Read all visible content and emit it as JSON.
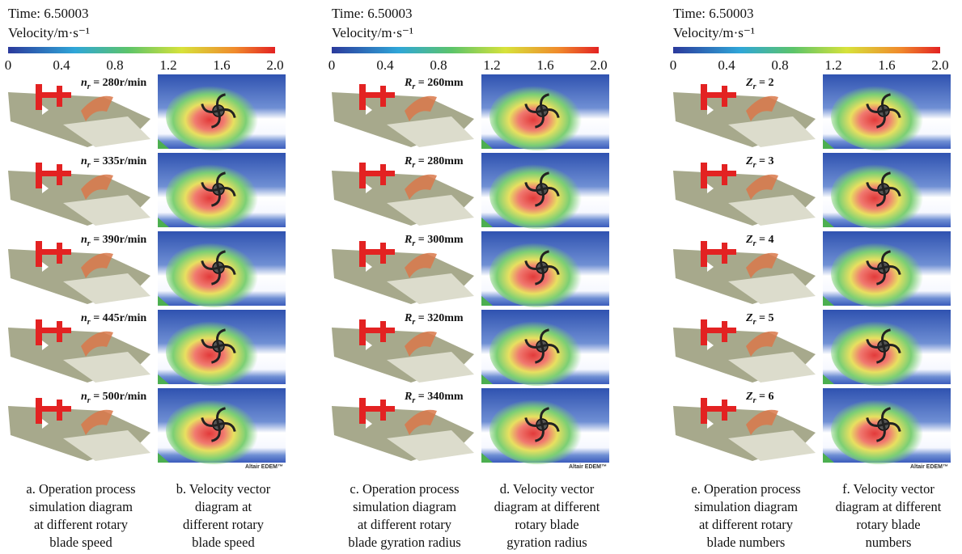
{
  "panels": [
    {
      "time": "Time: 6.50003",
      "colorbar": {
        "label": "Velocity/m·s⁻¹",
        "ticks": [
          0,
          0.4,
          0.8,
          1.2,
          1.6,
          {
            "value": 2,
            "label": "2.0"
          }
        ]
      },
      "labels": [
        {
          "symbol": "n",
          "sub": "r",
          "text": " = 280r/min"
        },
        {
          "symbol": "n",
          "sub": "r",
          "text": " = 335r/min"
        },
        {
          "symbol": "n",
          "sub": "r",
          "text": " = 390r/min"
        },
        {
          "symbol": "n",
          "sub": "r",
          "text": " = 445r/min"
        },
        {
          "symbol": "n",
          "sub": "r",
          "text": " = 500r/min"
        }
      ],
      "watermark": "Altair EDEM™",
      "captions": [
        [
          "a. Operation process",
          "simulation diagram",
          "at different rotary",
          "blade speed"
        ],
        [
          "b. Velocity vector",
          "diagram at",
          "different rotary",
          "blade speed"
        ]
      ]
    },
    {
      "time": "Time: 6.50003",
      "colorbar": {
        "label": "Velocity/m·s⁻¹",
        "ticks": [
          0,
          0.4,
          0.8,
          1.2,
          1.6,
          {
            "value": 2,
            "label": "2.0"
          }
        ]
      },
      "labels": [
        {
          "symbol": "R",
          "sub": "r",
          "text": " = 260mm"
        },
        {
          "symbol": "R",
          "sub": "r",
          "text": " = 280mm"
        },
        {
          "symbol": "R",
          "sub": "r",
          "text": " = 300mm"
        },
        {
          "symbol": "R",
          "sub": "r",
          "text": " = 320mm"
        },
        {
          "symbol": "R",
          "sub": "r",
          "text": " = 340mm"
        }
      ],
      "watermark": "Altair EDEM™",
      "captions": [
        [
          "c. Operation process",
          "simulation diagram",
          "at different rotary",
          "blade gyration radius"
        ],
        [
          "d. Velocity vector",
          "diagram at different",
          "rotary blade",
          "gyration radius"
        ]
      ]
    },
    {
      "time": "Time: 6.50003",
      "colorbar": {
        "label": "Velocity/m·s⁻¹",
        "ticks": [
          0,
          0.4,
          0.8,
          1.2,
          1.6,
          {
            "value": 2,
            "label": "2.0"
          }
        ]
      },
      "labels": [
        {
          "symbol": "Z",
          "sub": "r",
          "text": " = 2"
        },
        {
          "symbol": "Z",
          "sub": "r",
          "text": " = 3"
        },
        {
          "symbol": "Z",
          "sub": "r",
          "text": " = 4"
        },
        {
          "symbol": "Z",
          "sub": "r",
          "text": " = 5"
        },
        {
          "symbol": "Z",
          "sub": "r",
          "text": " = 6"
        }
      ],
      "watermark": "Altair EDEM™",
      "captions": [
        [
          "e. Operation process",
          "simulation diagram",
          "at different rotary",
          "blade numbers"
        ],
        [
          "f. Velocity vector",
          "diagram at different",
          "rotary blade",
          "numbers"
        ]
      ]
    }
  ]
}
